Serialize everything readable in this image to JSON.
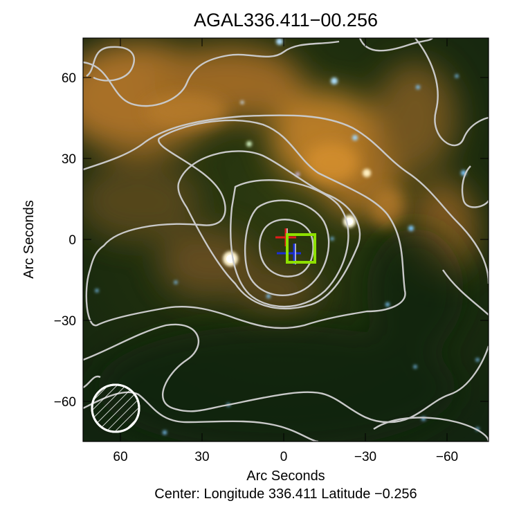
{
  "figure": {
    "title": "AGAL336.411−00.256",
    "xlabel": "Arc Seconds",
    "ylabel": "Arc Seconds",
    "footer": "Center:  Longitude 336.411 Latitude −0.256",
    "x_ticks": [
      "60",
      "30",
      "0",
      "−30",
      "−60"
    ],
    "y_ticks": [
      "60",
      "30",
      "0",
      "−30",
      "−60"
    ]
  },
  "image": {
    "description_colors": {
      "background": "#1a2c0c",
      "nebula": "#c98a2e",
      "contour": "#c9c9c9",
      "box": "#8ee000",
      "marker_red": "#e21b1b",
      "marker_blue": "#1a2fd6",
      "beam": "#ffffff"
    }
  }
}
